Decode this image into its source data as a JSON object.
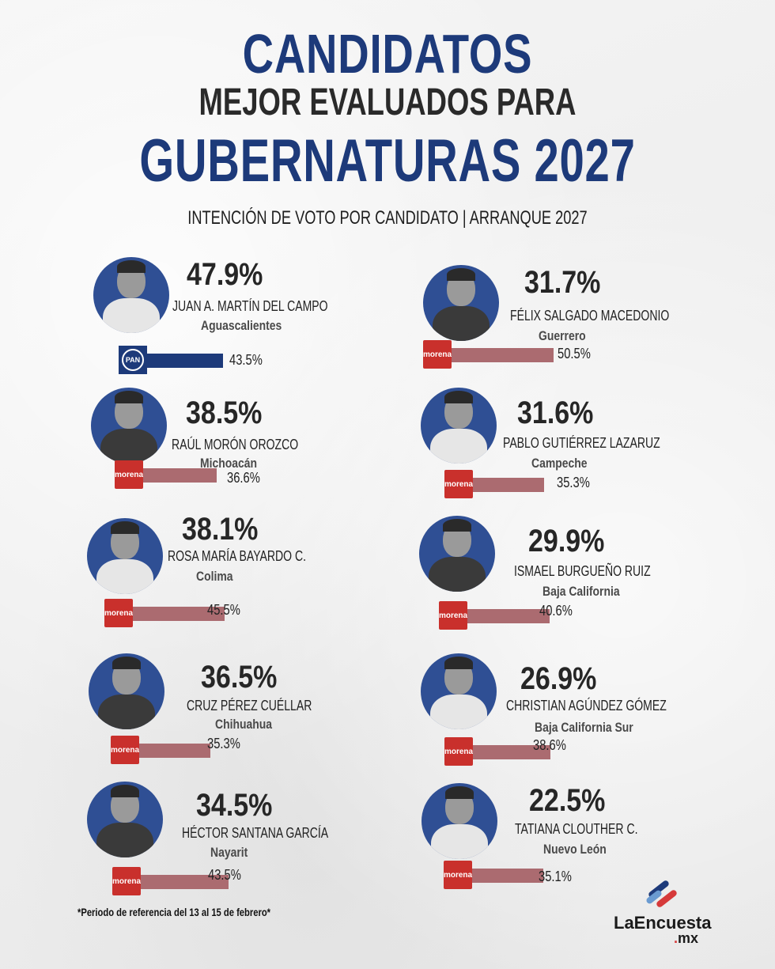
{
  "header": {
    "title_line1": "CANDIDATOS",
    "title_line2": "MEJOR EVALUADOS PARA",
    "title_line3": "GUBERNATURAS 2027",
    "subtitle": "INTENCIÓN DE VOTO POR CANDIDATO | ARRANQUE 2027"
  },
  "colors": {
    "brand_blue": "#1d3a7a",
    "morena_red": "#c9302c",
    "morena_bar": "#ab6b70",
    "pan_blue": "#1d3a7a"
  },
  "candidates": [
    {
      "pct": "47.9%",
      "name": "JUAN A. MARTÍN DEL CAMPO",
      "state": "Aguascalientes",
      "party": "PAN",
      "party_logo_text": "PAN",
      "party_pct": "43.5%",
      "party_value": 43.5
    },
    {
      "pct": "31.7%",
      "name": "FÉLIX SALGADO MACEDONIO",
      "state": "Guerrero",
      "party": "morena",
      "party_logo_text": "morena",
      "party_pct": "50.5%",
      "party_value": 50.5
    },
    {
      "pct": "38.5%",
      "name": "RAÚL MORÓN OROZCO",
      "state": "Michoacán",
      "party": "morena",
      "party_logo_text": "morena",
      "party_pct": "36.6%",
      "party_value": 36.6
    },
    {
      "pct": "31.6%",
      "name": "PABLO GUTIÉRREZ LAZARUZ",
      "state": "Campeche",
      "party": "morena",
      "party_logo_text": "morena",
      "party_pct": "35.3%",
      "party_value": 35.3
    },
    {
      "pct": "38.1%",
      "name": "ROSA MARÍA BAYARDO C.",
      "state": "Colima",
      "party": "morena",
      "party_logo_text": "morena",
      "party_pct": "45.5%",
      "party_value": 45.5
    },
    {
      "pct": "29.9%",
      "name": "ISMAEL BURGUEÑO RUIZ",
      "state": "Baja California",
      "party": "morena",
      "party_logo_text": "morena",
      "party_pct": "40.6%",
      "party_value": 40.6
    },
    {
      "pct": "36.5%",
      "name": "CRUZ PÉREZ CUÉLLAR",
      "state": "Chihuahua",
      "party": "morena",
      "party_logo_text": "morena",
      "party_pct": "35.3%",
      "party_value": 35.3
    },
    {
      "pct": "26.9%",
      "name": "CHRISTIAN AGÚNDEZ GÓMEZ",
      "state": "Baja California Sur",
      "party": "morena",
      "party_logo_text": "morena",
      "party_pct": "38.6%",
      "party_value": 38.6
    },
    {
      "pct": "34.5%",
      "name": "HÉCTOR SANTANA GARCÍA",
      "state": "Nayarit",
      "party": "morena",
      "party_logo_text": "morena",
      "party_pct": "43.5%",
      "party_value": 43.5
    },
    {
      "pct": "22.5%",
      "name": "TATIANA CLOUTHER C.",
      "state": "Nuevo León",
      "party": "morena",
      "party_logo_text": "morena",
      "party_pct": "35.1%",
      "party_value": 35.1
    }
  ],
  "footer": {
    "note": "*Periodo de referencia del 13 al 15 de febrero*",
    "brand": "LaEncuesta",
    "brand_tld_dot": ".",
    "brand_tld": "mx"
  }
}
